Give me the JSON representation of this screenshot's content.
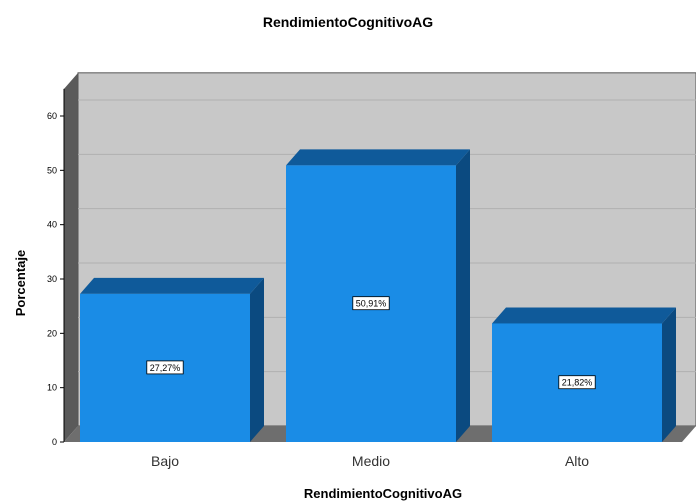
{
  "chart_data": {
    "type": "bar",
    "title": "RendimientoCognitivoAG",
    "xlabel": "RendimientoCognitivoAG",
    "ylabel": "Porcentaje",
    "categories": [
      "Bajo",
      "Medio",
      "Alto"
    ],
    "values": [
      27.27,
      50.91,
      21.82
    ],
    "data_labels": [
      "27,27%",
      "50,91%",
      "21,82%"
    ],
    "yticks": [
      0,
      10,
      20,
      30,
      40,
      50,
      60
    ],
    "ylim": [
      0,
      65
    ],
    "grid": true,
    "legend": "none",
    "colors": {
      "bar_front": "#1a8ce6",
      "bar_top": "#0f5a9a",
      "bar_side": "#0b4a80",
      "plot_back": "#c8c8c8",
      "plot_floor": "#6e6e6e",
      "plot_wall": "#5a5a5a"
    }
  }
}
